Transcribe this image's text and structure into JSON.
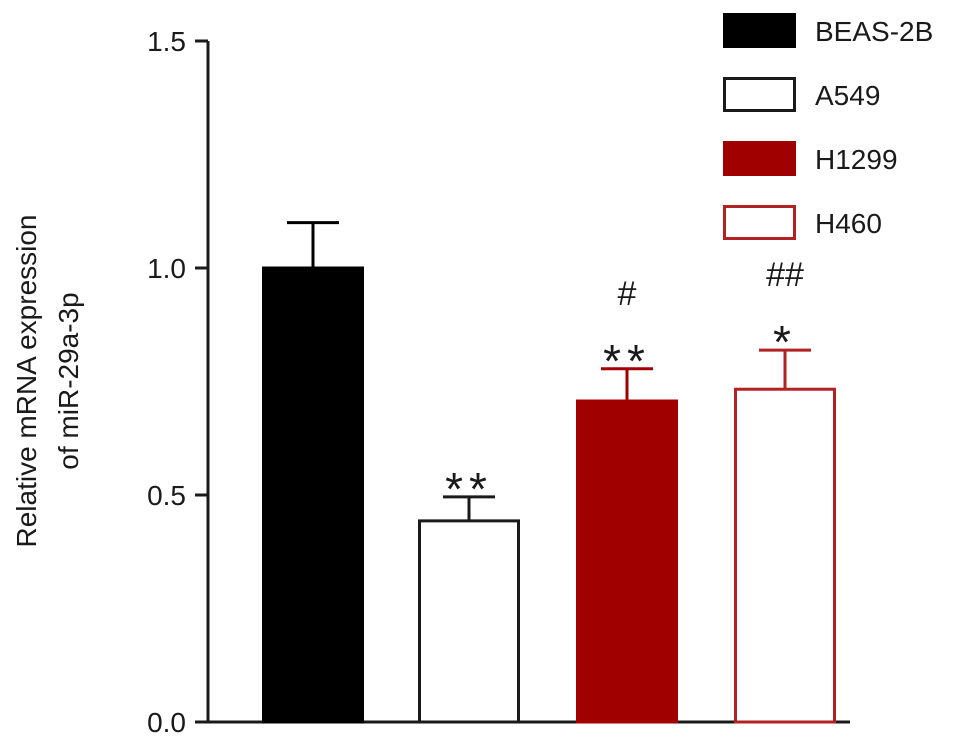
{
  "chart_data": {
    "type": "bar",
    "title": "",
    "xlabel": "",
    "ylabel_lines": [
      "Relative mRNA expression",
      "of miR-29a-3p"
    ],
    "ylim": [
      0,
      1.5
    ],
    "yticks": [
      {
        "value": 0.0,
        "label": "0.0"
      },
      {
        "value": 0.5,
        "label": "0.5"
      },
      {
        "value": 1.0,
        "label": "1.0"
      },
      {
        "value": 1.5,
        "label": "1.5"
      }
    ],
    "grid": false,
    "legend_position": "top-right",
    "categories": [
      "BEAS-2B",
      "A549",
      "H1299",
      "H460"
    ],
    "series": [
      {
        "name": "BEAS-2B",
        "value": 1.0,
        "error": 0.1,
        "fill": "#000000",
        "stroke": "#000000",
        "annotations": []
      },
      {
        "name": "A549",
        "value": 0.443,
        "error": 0.053,
        "fill": "#ffffff",
        "stroke": "#1a1a1a",
        "annotations": [
          "**"
        ]
      },
      {
        "name": "H1299",
        "value": 0.707,
        "error": 0.071,
        "fill": "#a00000",
        "stroke": "#a00000",
        "annotations": [
          "#",
          "**"
        ]
      },
      {
        "name": "H460",
        "value": 0.733,
        "error": 0.086,
        "fill": "#ffffff",
        "stroke": "#b22222",
        "annotations": [
          "##",
          "*"
        ]
      }
    ]
  }
}
